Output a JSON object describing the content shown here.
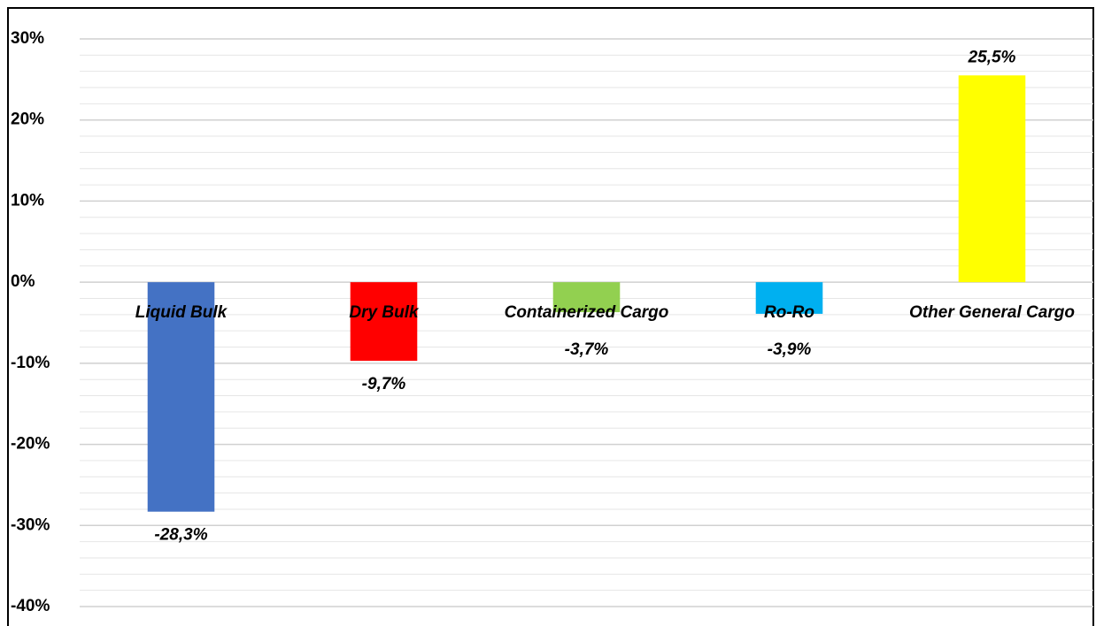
{
  "chart_data": {
    "type": "bar",
    "categories": [
      "Liquid Bulk",
      "Dry Bulk",
      "Containerized Cargo",
      "Ro-Ro",
      "Other General Cargo"
    ],
    "values": [
      -28.3,
      -9.7,
      -3.7,
      -3.9,
      25.5
    ],
    "value_labels": [
      "-28,3%",
      "-9,7%",
      "-3,7%",
      "-3,9%",
      "25,5%"
    ],
    "colors": [
      "#4472c4",
      "#ff0000",
      "#92d050",
      "#00b0f0",
      "#ffff00"
    ],
    "ylim": [
      -40,
      30
    ],
    "yticks": [
      {
        "value": 30,
        "label": "30%"
      },
      {
        "value": 20,
        "label": "20%"
      },
      {
        "value": 10,
        "label": "10%"
      },
      {
        "value": 0,
        "label": "0%"
      },
      {
        "value": -10,
        "label": "-10%"
      },
      {
        "value": -20,
        "label": "-20%"
      },
      {
        "value": -30,
        "label": "-30%"
      },
      {
        "value": -40,
        "label": "-40%"
      }
    ],
    "minor_yticks": [
      28,
      26,
      24,
      22,
      18,
      16,
      14,
      12,
      8,
      6,
      4,
      2,
      -2,
      -4,
      -6,
      -8,
      -12,
      -14,
      -16,
      -18,
      -22,
      -24,
      -26,
      -28,
      -32,
      -34,
      -36,
      -38
    ],
    "grid": true
  }
}
